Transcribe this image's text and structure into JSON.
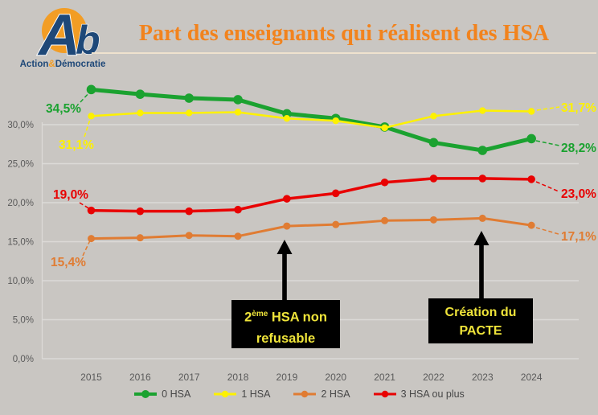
{
  "header": {
    "title": "Part des enseignants qui réalisent des HSA",
    "logo": {
      "monogram_a": "A",
      "monogram_b": "b",
      "brand_action": "Action",
      "brand_amp": "&",
      "brand_democratie": "Démocratie"
    }
  },
  "colors": {
    "background": "#C9C6C2",
    "title": "#F2831D",
    "logo_orange": "#F29D25",
    "logo_blue": "#1E4878",
    "axis_text": "#5A5A5A",
    "gridline": "#DCDAD7",
    "annotation_bg": "#000000",
    "annotation_text": "#EFE43A"
  },
  "chart_data": {
    "type": "line",
    "title": "Part des enseignants qui réalisent des HSA",
    "categories": [
      "2015",
      "2016",
      "2017",
      "2018",
      "2019",
      "2020",
      "2021",
      "2022",
      "2023",
      "2024"
    ],
    "y_ticks": {
      "labels": [
        "0,0%",
        "5,0%",
        "10,0%",
        "15,0%",
        "20,0%",
        "25,0%",
        "30,0%"
      ],
      "values": [
        0,
        5,
        10,
        15,
        20,
        25,
        30
      ]
    },
    "ylim": [
      0,
      36
    ],
    "grid": "horizontal",
    "legend_position": "bottom",
    "series": [
      {
        "name": "0 HSA",
        "color": "#1BA230",
        "values": [
          34.5,
          33.9,
          33.4,
          33.2,
          31.4,
          30.8,
          29.7,
          27.7,
          26.7,
          28.2
        ],
        "start_label": "34,5%",
        "end_label": "28,2%"
      },
      {
        "name": "1 HSA",
        "color": "#FDF100",
        "values": [
          31.1,
          31.5,
          31.5,
          31.6,
          30.8,
          30.5,
          29.6,
          31.1,
          31.8,
          31.7
        ],
        "start_label": "31,1%",
        "end_label": "31,7%"
      },
      {
        "name": "2 HSA",
        "color": "#E07C33",
        "values": [
          15.4,
          15.5,
          15.8,
          15.7,
          17.0,
          17.2,
          17.7,
          17.8,
          18.0,
          17.1
        ],
        "start_label": "15,4%",
        "end_label": "17,1%"
      },
      {
        "name": "3 HSA ou plus",
        "color": "#E80202",
        "values": [
          19.0,
          18.9,
          18.9,
          19.1,
          20.5,
          21.2,
          22.6,
          23.1,
          23.1,
          23.0
        ],
        "start_label": "19,0%",
        "end_label": "23,0%"
      }
    ],
    "annotations": [
      {
        "text": "2ème HSA non refusable",
        "line1_base": "2",
        "line1_sup": "ème",
        "line1_rest": " HSA non",
        "line2": "refusable",
        "arrow_target_year": "2019"
      },
      {
        "text": "Création du PACTE",
        "line1": "Création du",
        "line2": "PACTE",
        "arrow_target_year": "2023"
      }
    ]
  }
}
